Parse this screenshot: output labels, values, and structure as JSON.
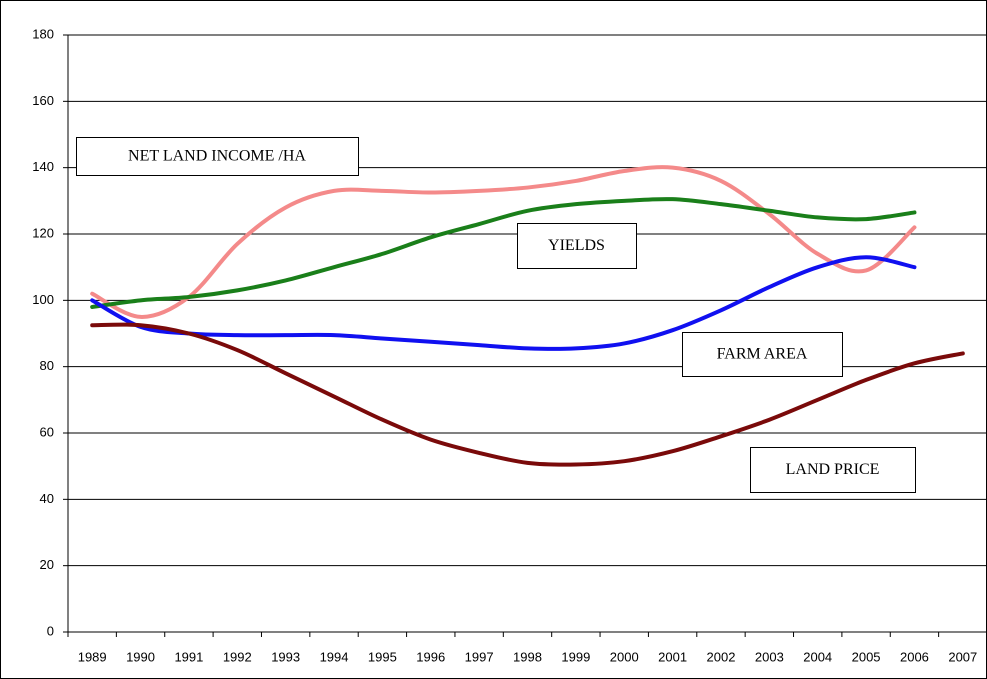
{
  "chart_data": {
    "type": "line",
    "categories": [
      "1989",
      "1990",
      "1991",
      "1992",
      "1993",
      "1994",
      "1995",
      "1996",
      "1997",
      "1998",
      "1999",
      "2000",
      "2001",
      "2002",
      "2003",
      "2004",
      "2005",
      "2006",
      "2007"
    ],
    "series": [
      {
        "name": "NET LAND INCOME /HA",
        "color": "#f48a8a",
        "values": [
          102,
          95,
          101,
          117,
          128,
          133,
          133,
          132.5,
          133,
          134,
          136,
          139,
          140,
          136,
          126,
          114,
          109,
          122,
          null
        ]
      },
      {
        "name": "YIELDS",
        "color": "#1a7f1a",
        "values": [
          98,
          100,
          101,
          103,
          106,
          110,
          114,
          119,
          123,
          127,
          129,
          130,
          130.5,
          129,
          127,
          125,
          124.5,
          126.5,
          null
        ]
      },
      {
        "name": "FARM AREA",
        "color": "#1010f0",
        "values": [
          100,
          92,
          90,
          89.5,
          89.5,
          89.5,
          88.5,
          87.5,
          86.5,
          85.5,
          85.5,
          87,
          91,
          97,
          104,
          110,
          113,
          110,
          null
        ]
      },
      {
        "name": "LAND PRICE",
        "color": "#7a0a0a",
        "values": [
          92.5,
          92.5,
          90,
          85,
          78,
          71,
          64,
          58,
          54,
          51,
          50.5,
          51.5,
          54.5,
          59,
          64,
          70,
          76,
          81,
          84
        ]
      }
    ],
    "ylim": [
      0,
      180
    ],
    "yticks": [
      0,
      20,
      40,
      60,
      80,
      100,
      120,
      140,
      160,
      180
    ],
    "grid": true
  }
}
